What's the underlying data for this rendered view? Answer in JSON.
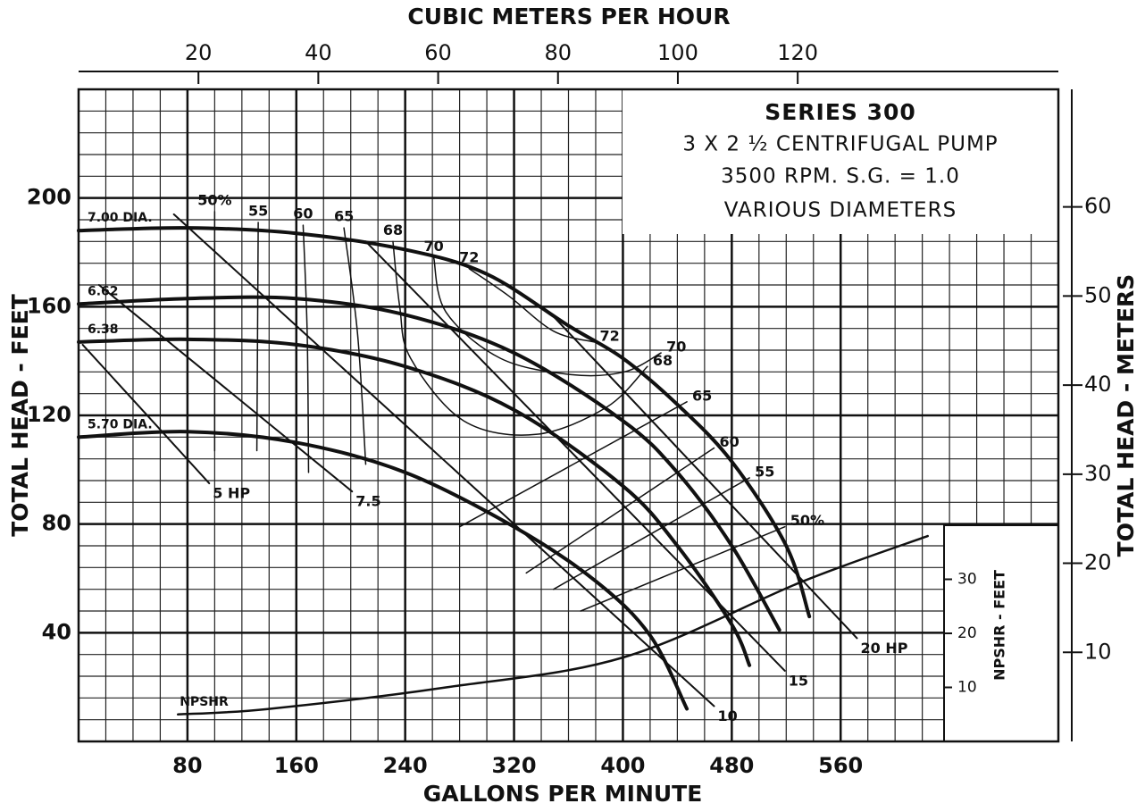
{
  "chart_data": {
    "type": "line",
    "title": "SERIES 300",
    "subtitle": [
      "3 X 2 ½ CENTRIFUGAL PUMP",
      "3500 RPM. S.G. = 1.0",
      "VARIOUS DIAMETERS"
    ],
    "x_label": "GALLONS PER MINUTE",
    "x2_label": "CUBIC METERS PER HOUR",
    "y_label": "TOTAL HEAD - FEET",
    "y2_label": "TOTAL HEAD - METERS",
    "y3_label": "NPSHR - FEET",
    "xlim": [
      0,
      720
    ],
    "xticks": [
      80,
      160,
      240,
      320,
      400,
      480,
      560
    ],
    "x2lim": [
      0,
      163.5
    ],
    "x2ticks": [
      20,
      40,
      60,
      80,
      100,
      120
    ],
    "ylim": [
      0,
      240
    ],
    "yticks": [
      40,
      80,
      120,
      160,
      200
    ],
    "y2lim": [
      0,
      73.2
    ],
    "y2ticks": [
      10,
      20,
      30,
      40,
      50,
      60
    ],
    "y3lim": [
      0,
      40
    ],
    "y3ticks": [
      10,
      20,
      30
    ],
    "grid": true,
    "x_minor": 4,
    "y_minor": 5,
    "series": [
      {
        "name": "7.00 DIA.",
        "color": "#111",
        "width": 4,
        "label_at": "start",
        "x": [
          0,
          80,
          160,
          240,
          300,
          360,
          400,
          440,
          480,
          520,
          537
        ],
        "values": [
          188,
          189,
          187,
          181,
          172,
          153,
          141,
          124,
          103,
          72,
          46
        ]
      },
      {
        "name": "6.62",
        "color": "#111",
        "width": 4,
        "label_at": "start",
        "x": [
          0,
          80,
          160,
          240,
          320,
          400,
          440,
          480,
          515
        ],
        "values": [
          161,
          163,
          163,
          157,
          143,
          118,
          99,
          72,
          41
        ]
      },
      {
        "name": "6.38",
        "color": "#111",
        "width": 4,
        "label_at": "start",
        "x": [
          0,
          80,
          160,
          240,
          320,
          400,
          440,
          480,
          493
        ],
        "values": [
          147,
          148,
          146,
          138,
          122,
          94,
          72,
          43,
          28
        ]
      },
      {
        "name": "5.70 DIA.",
        "color": "#111",
        "width": 4,
        "label_at": "start",
        "x": [
          0,
          80,
          160,
          240,
          320,
          380,
          420,
          447
        ],
        "values": [
          112,
          114,
          110,
          99,
          79,
          59,
          39,
          12
        ]
      },
      {
        "name": "5 HP",
        "color": "#111",
        "width": 2,
        "label_at": "end",
        "x": [
          3,
          96
        ],
        "values": [
          146,
          95
        ]
      },
      {
        "name": "7.5",
        "color": "#111",
        "width": 2,
        "label_at": "end",
        "x": [
          15,
          201
        ],
        "values": [
          168,
          92
        ]
      },
      {
        "name": "10",
        "color": "#111",
        "width": 2,
        "label_at": "end",
        "x": [
          70,
          467
        ],
        "values": [
          194,
          13
        ]
      },
      {
        "name": "15",
        "color": "#111",
        "width": 2,
        "label_at": "end",
        "x": [
          211,
          519
        ],
        "values": [
          184,
          26
        ]
      },
      {
        "name": "20 HP",
        "color": "#111",
        "width": 2,
        "label_at": "end",
        "x": [
          346,
          572
        ],
        "values": [
          158,
          38
        ]
      },
      {
        "name": "50%",
        "color": "#111",
        "width": 1.5,
        "label_at": "both",
        "x": [
          100,
          100,
          null,
          369,
          519
        ],
        "values": [
          195,
          107,
          null,
          48,
          79
        ]
      },
      {
        "name": "55",
        "color": "#111",
        "width": 1.5,
        "label_at": "both",
        "x": [
          132,
          131,
          null,
          349,
          493
        ],
        "values": [
          191,
          107,
          null,
          56,
          97
        ]
      },
      {
        "name": "60",
        "color": "#111",
        "width": 1.5,
        "label_at": "both",
        "x": [
          165,
          168,
          169,
          null,
          329,
          467
        ],
        "values": [
          190,
          150,
          99,
          null,
          62,
          108
        ]
      },
      {
        "name": "65",
        "color": "#111",
        "width": 1.5,
        "label_at": "both",
        "x": [
          195,
          205,
          211,
          null,
          280,
          447
        ],
        "values": [
          189,
          150,
          102,
          null,
          79,
          125
        ]
      },
      {
        "name": "68",
        "color": "#111",
        "width": 1.5,
        "label_at": "both",
        "x": [
          231,
          236,
          244,
          283,
          336,
          388,
          418
        ],
        "values": [
          184,
          160,
          141,
          118,
          113,
          123,
          138
        ]
      },
      {
        "name": "70",
        "color": "#111",
        "width": 1.5,
        "label_at": "both",
        "x": [
          261,
          270,
          310,
          362,
          401,
          428
        ],
        "values": [
          178,
          158,
          141,
          135,
          136,
          143
        ]
      },
      {
        "name": "72",
        "color": "#111",
        "width": 1.5,
        "label_at": "both",
        "x": [
          287,
          316,
          349,
          379
        ],
        "values": [
          174,
          164,
          151,
          147
        ]
      },
      {
        "name": "NPSHR",
        "color": "#111",
        "width": 2.5,
        "label_at": "start",
        "axis": "y3",
        "x": [
          73,
          139,
          270,
          401,
          532,
          624
        ],
        "values": [
          5,
          6,
          10,
          15.6,
          29.6,
          38
        ]
      }
    ]
  }
}
